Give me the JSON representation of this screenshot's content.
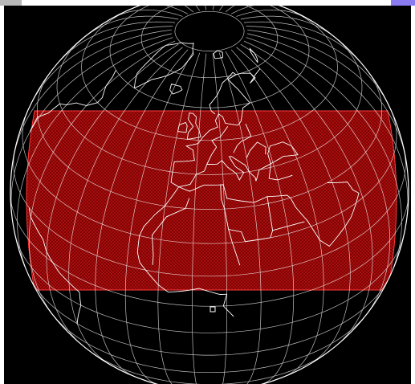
{
  "colors": {
    "background": "#000000",
    "grid_line": "#ffffff",
    "coastline": "#ffffff",
    "domain_fill": "#8b0000",
    "domain_mesh": "#ff4040",
    "topbar_left": "#b8b8b8",
    "topbar_right": "#8a7cf0"
  },
  "map": {
    "projection": "orthographic",
    "graticule": true,
    "highlighted_region": "red-mesh-domain"
  },
  "icons": {
    "marker": "small-square-marker"
  }
}
